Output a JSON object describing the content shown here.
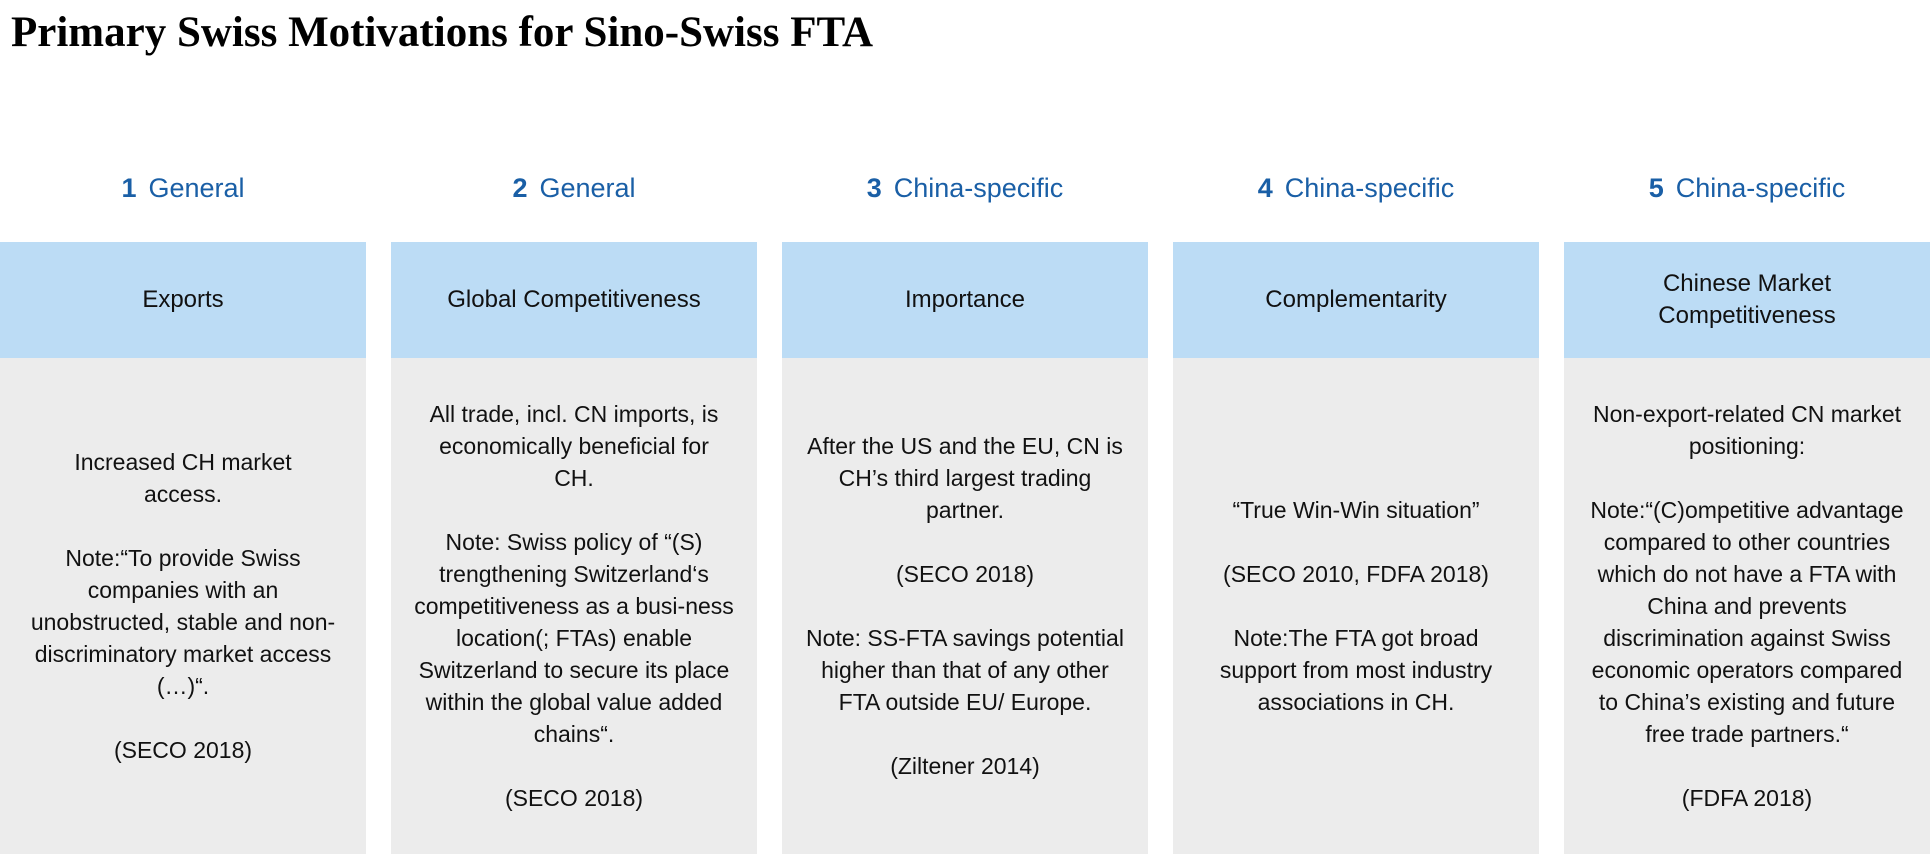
{
  "title": "Primary Swiss Motivations for Sino-Swiss FTA",
  "columns": [
    {
      "number": "1",
      "category": "General",
      "header": "Exports",
      "paragraphs": [
        "Increased CH market access.",
        "Note:“To provide Swiss companies with an unobstructed, stable and non-discriminatory market access (…)“.",
        "(SECO 2018)"
      ]
    },
    {
      "number": "2",
      "category": "General",
      "header": "Global Competitiveness",
      "paragraphs": [
        "All trade, incl. CN imports, is economically beneficial for CH.",
        "Note: Swiss policy of “(S) trengthening Switzerland‘s competitiveness as a busi-ness location(; FTAs) enable Switzerland to secure its place within the global value added chains“.",
        "(SECO 2018)"
      ]
    },
    {
      "number": "3",
      "category": "China-specific",
      "header": "Importance",
      "paragraphs": [
        "After the US and the EU, CN is CH’s third largest trading partner.",
        "(SECO 2018)",
        "Note: SS-FTA savings potential higher than that of any other FTA outside EU/ Europe.",
        "(Ziltener 2014)"
      ]
    },
    {
      "number": "4",
      "category": "China-specific",
      "header": "Complementarity",
      "paragraphs": [
        "“True Win-Win situation”",
        "(SECO 2010, FDFA 2018)",
        "Note:The FTA got broad support from most industry associations in CH."
      ]
    },
    {
      "number": "5",
      "category": "China-specific",
      "header": "Chinese Market Competitiveness",
      "paragraphs": [
        "Non-export-related CN market positioning:",
        "Note:“(C)ompetitive advantage compared to other countries which do not have a FTA with China and prevents discrimination against Swiss economic operators compared to China’s existing and future free trade partners.“",
        "(FDFA 2018)"
      ]
    }
  ]
}
